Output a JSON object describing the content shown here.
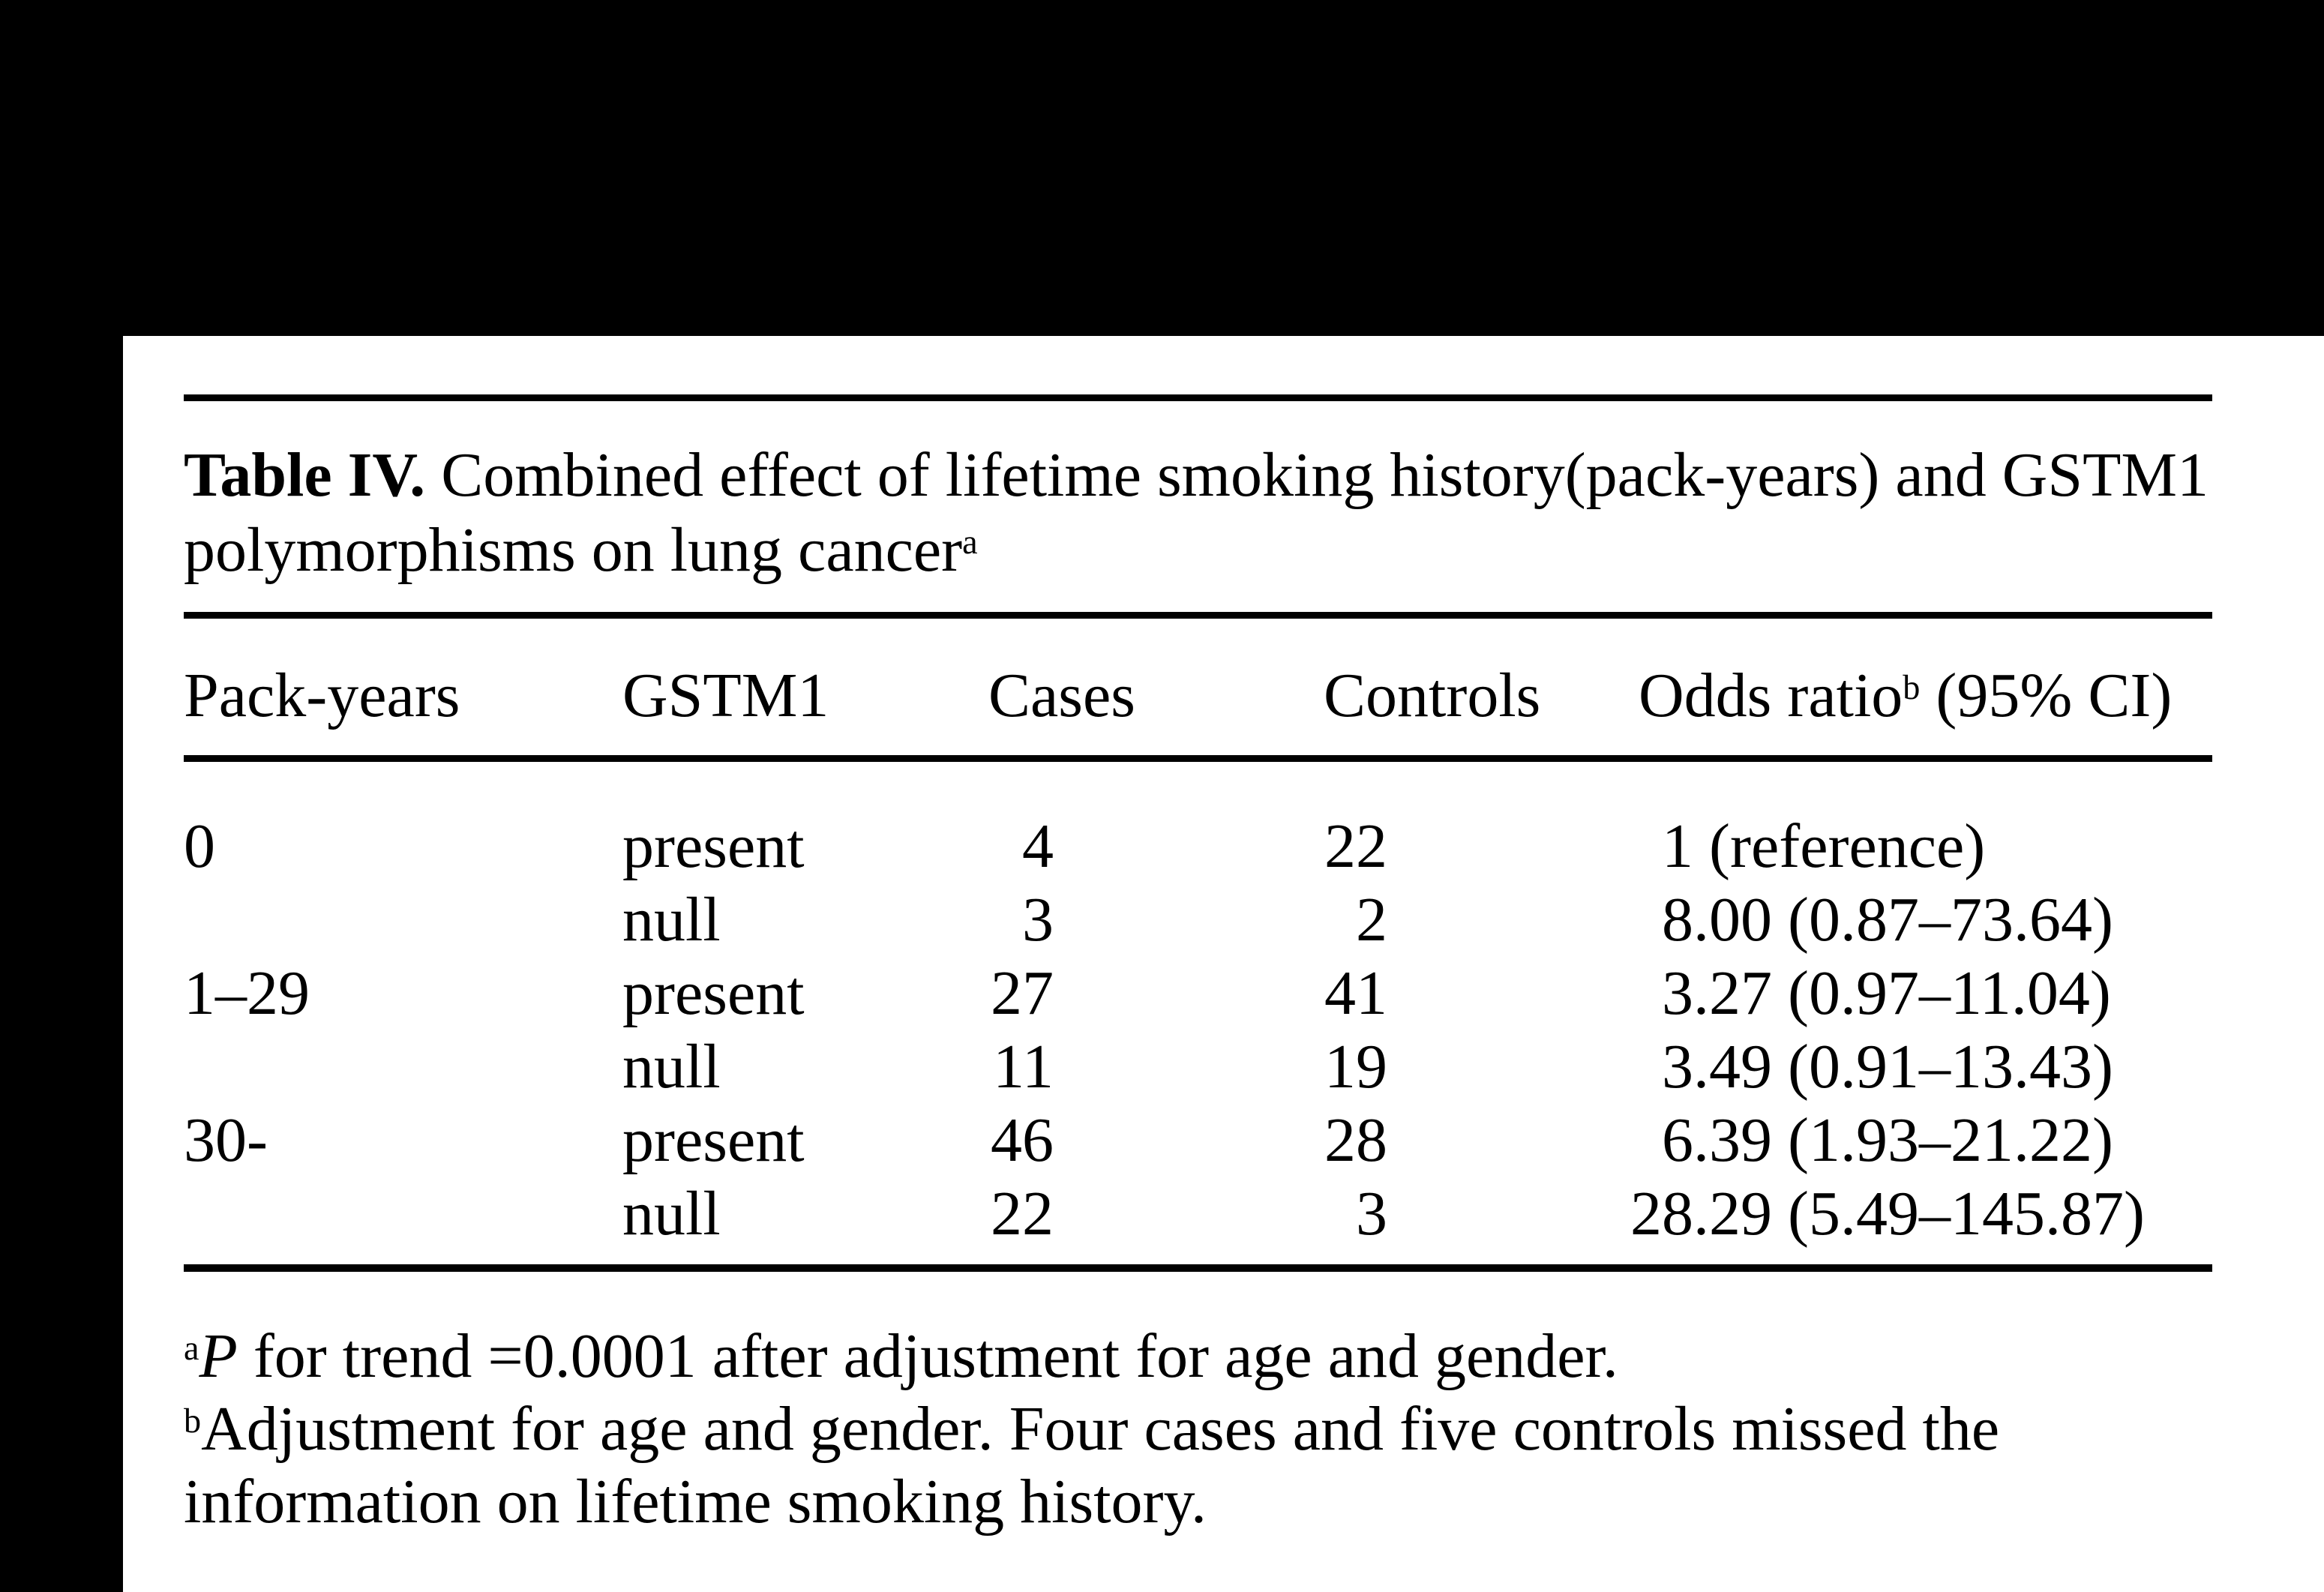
{
  "page": {
    "background_color": "#000000",
    "paper_color": "#ffffff",
    "text_color": "#000000"
  },
  "table": {
    "title": {
      "label": "Table IV.",
      "text": " Combined effect of lifetime smoking history(pack-years) and GSTM1 polymorphisms on lung cancer",
      "sup": "a"
    },
    "columns": {
      "pack_years": "Pack-years",
      "gstm1": "GSTM1",
      "cases": "Cases",
      "controls": "Controls",
      "odds_pre": "Odds ratio",
      "odds_sup": "b",
      "odds_post": " (95% CI)"
    },
    "rows": [
      {
        "pack_years": "0",
        "gstm1": "present",
        "cases": "4",
        "controls": "22",
        "or_int": "1",
        "or_rest": " (reference)"
      },
      {
        "pack_years": "",
        "gstm1": "null",
        "cases": "3",
        "controls": "2",
        "or_int": "8",
        "or_rest": ".00 (0.87–73.64)"
      },
      {
        "pack_years": "1–29",
        "gstm1": "present",
        "cases": "27",
        "controls": "41",
        "or_int": "3",
        "or_rest": ".27 (0.97–11.04)"
      },
      {
        "pack_years": "",
        "gstm1": "null",
        "cases": "11",
        "controls": "19",
        "or_int": "3",
        "or_rest": ".49 (0.91–13.43)"
      },
      {
        "pack_years": "30-",
        "gstm1": "present",
        "cases": "46",
        "controls": "28",
        "or_int": "6",
        "or_rest": ".39 (1.93–21.22)"
      },
      {
        "pack_years": "",
        "gstm1": "null",
        "cases": "22",
        "controls": "3",
        "or_int": "28",
        "or_rest": ".29 (5.49–145.87)"
      }
    ]
  },
  "footnotes": {
    "a": {
      "marker": "a",
      "italic": "P",
      "text": " for trend =0.0001 after adjustment for age and gender."
    },
    "b": {
      "marker": "b",
      "text": "Adjustment for age and gender. Four cases and five controls missed the information on lifetime smoking history."
    }
  }
}
